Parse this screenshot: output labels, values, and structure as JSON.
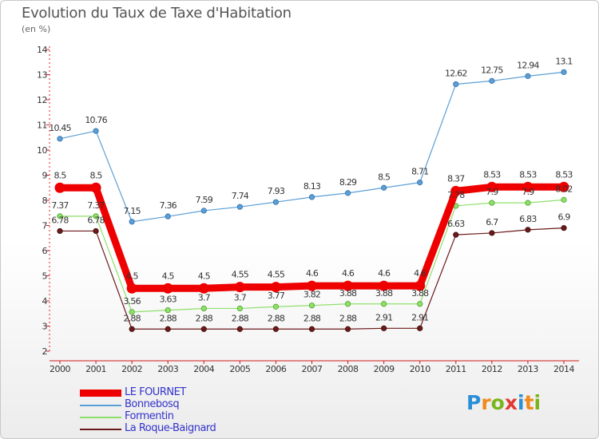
{
  "title": "Evolution du Taux de Taxe d'Habitation",
  "subtitle": "(en %)",
  "logo": "Proxiti",
  "chart_data": {
    "type": "line",
    "title": "Evolution du Taux de Taxe d'Habitation",
    "subtitle": "(en %)",
    "x": [
      "2000",
      "2001",
      "2002",
      "2003",
      "2004",
      "2005",
      "2006",
      "2007",
      "2008",
      "2009",
      "2010",
      "2011",
      "2012",
      "2013",
      "2014"
    ],
    "ylim": [
      2,
      14
    ],
    "yticks": [
      2,
      3,
      4,
      5,
      6,
      7,
      8,
      9,
      10,
      11,
      12,
      13,
      14
    ],
    "grid": false,
    "legend": "bottom-left",
    "series": [
      {
        "name": "LE FOURNET",
        "color": "#ee0000",
        "width": 9,
        "values": [
          8.5,
          8.5,
          4.5,
          4.5,
          4.5,
          4.55,
          4.55,
          4.6,
          4.6,
          4.6,
          4.6,
          8.37,
          8.53,
          8.53,
          8.53
        ],
        "labels": [
          "8.5",
          "8.5",
          "4.5",
          "4.5",
          "4.5",
          "4.55",
          "4.55",
          "4.6",
          "4.6",
          "4.6",
          "4.6",
          "8.37",
          "8.53",
          "8.53",
          "8.53"
        ]
      },
      {
        "name": "Bonnebosq",
        "color": "#5b9fd6",
        "width": 1.2,
        "values": [
          10.45,
          10.76,
          7.15,
          7.36,
          7.59,
          7.74,
          7.93,
          8.13,
          8.29,
          8.5,
          8.71,
          12.62,
          12.75,
          12.94,
          13.1
        ],
        "labels": [
          "10.45",
          "10.76",
          "7.15",
          "7.36",
          "7.59",
          "7.74",
          "7.93",
          "8.13",
          "8.29",
          "8.5",
          "8.71",
          "12.62",
          "12.75",
          "12.94",
          "13.1"
        ]
      },
      {
        "name": "Formentin",
        "color": "#8ee06a",
        "width": 1.2,
        "values": [
          7.37,
          7.37,
          3.56,
          3.63,
          3.7,
          3.7,
          3.77,
          3.82,
          3.88,
          3.88,
          3.88,
          7.78,
          7.9,
          7.9,
          8.02
        ],
        "labels": [
          "7.37",
          "7.37",
          "3.56",
          "3.63",
          "3.7",
          "3.7",
          "3.77",
          "3.82",
          "3.88",
          "3.88",
          "3.88",
          "7.78",
          "7.9",
          "7.9",
          "8.02"
        ]
      },
      {
        "name": "La Roque-Baignard",
        "color": "#6b1a1a",
        "width": 1.2,
        "values": [
          6.78,
          6.78,
          2.88,
          2.88,
          2.88,
          2.88,
          2.88,
          2.88,
          2.88,
          2.91,
          2.91,
          6.63,
          6.7,
          6.83,
          6.9
        ],
        "labels": [
          "6.78",
          "6.78",
          "2.88",
          "2.88",
          "2.88",
          "2.88",
          "2.88",
          "2.88",
          "2.88",
          "2.91",
          "2.91",
          "6.63",
          "6.7",
          "6.83",
          "6.9"
        ]
      }
    ]
  }
}
